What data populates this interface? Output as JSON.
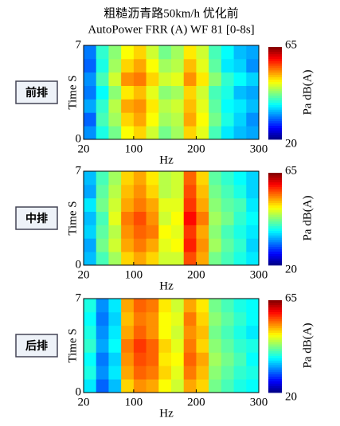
{
  "title": "粗糙沥青路50km/h 优化前",
  "subtitle": "AutoPower FRR (A) WF 81 [0-8s]",
  "chart_data": [
    {
      "type": "heatmap",
      "label": "前排",
      "xlabel": "Hz",
      "ylabel": "Time S",
      "colorbar_label": "Pa dB(A)",
      "colormap": "jet",
      "xlim": [
        20,
        300
      ],
      "xticks": [
        20,
        100,
        200,
        300
      ],
      "ylim": [
        0,
        7
      ],
      "yticks": [
        0,
        7
      ],
      "clim": [
        20,
        65
      ],
      "cticks": [
        20,
        65
      ],
      "xbins": [
        20,
        40,
        60,
        80,
        100,
        120,
        140,
        160,
        180,
        200,
        220,
        240,
        260,
        280,
        300
      ],
      "ybins": [
        0,
        1,
        2,
        3,
        4,
        5,
        6,
        7
      ],
      "values": [
        [
          32,
          38,
          42,
          48,
          50,
          46,
          42,
          44,
          50,
          47,
          40,
          36,
          34,
          33
        ],
        [
          30,
          40,
          44,
          50,
          52,
          48,
          44,
          45,
          52,
          48,
          42,
          38,
          35,
          32
        ],
        [
          33,
          39,
          45,
          52,
          53,
          49,
          45,
          46,
          51,
          47,
          41,
          37,
          36,
          34
        ],
        [
          31,
          37,
          43,
          49,
          51,
          47,
          43,
          44,
          50,
          46,
          40,
          38,
          34,
          33
        ],
        [
          32,
          40,
          46,
          53,
          54,
          50,
          46,
          47,
          53,
          49,
          43,
          39,
          37,
          35
        ],
        [
          30,
          38,
          44,
          50,
          52,
          48,
          44,
          45,
          51,
          47,
          41,
          36,
          35,
          32
        ],
        [
          31,
          39,
          43,
          48,
          50,
          46,
          42,
          44,
          49,
          46,
          40,
          37,
          34,
          33
        ]
      ]
    },
    {
      "type": "heatmap",
      "label": "中排",
      "xlabel": "Hz",
      "ylabel": "Time S",
      "colorbar_label": "Pa dB(A)",
      "colormap": "jet",
      "xlim": [
        20,
        300
      ],
      "xticks": [
        20,
        100,
        200,
        300
      ],
      "ylim": [
        0,
        7
      ],
      "yticks": [
        0,
        7
      ],
      "clim": [
        20,
        65
      ],
      "cticks": [
        20,
        65
      ],
      "xbins": [
        20,
        40,
        60,
        80,
        100,
        120,
        140,
        160,
        180,
        200,
        220,
        240,
        260,
        280,
        300
      ],
      "ybins": [
        0,
        1,
        2,
        3,
        4,
        5,
        6,
        7
      ],
      "values": [
        [
          34,
          40,
          44,
          50,
          52,
          50,
          46,
          46,
          56,
          52,
          42,
          40,
          38,
          36
        ],
        [
          33,
          42,
          46,
          52,
          54,
          52,
          47,
          48,
          58,
          53,
          44,
          41,
          39,
          35
        ],
        [
          35,
          41,
          45,
          53,
          55,
          54,
          48,
          47,
          57,
          52,
          43,
          40,
          38,
          36
        ],
        [
          34,
          40,
          47,
          54,
          56,
          53,
          46,
          48,
          59,
          54,
          44,
          42,
          39,
          37
        ],
        [
          36,
          42,
          46,
          52,
          54,
          52,
          47,
          47,
          57,
          52,
          43,
          41,
          40,
          36
        ],
        [
          33,
          41,
          45,
          51,
          53,
          50,
          45,
          46,
          56,
          51,
          42,
          40,
          38,
          35
        ],
        [
          34,
          40,
          44,
          50,
          52,
          49,
          45,
          46,
          55,
          50,
          41,
          39,
          37,
          35
        ]
      ]
    },
    {
      "type": "heatmap",
      "label": "后排",
      "xlabel": "Hz",
      "ylabel": "Time S",
      "colorbar_label": "Pa dB(A)",
      "colormap": "jet",
      "xlim": [
        20,
        300
      ],
      "xticks": [
        20,
        100,
        200,
        300
      ],
      "ylim": [
        0,
        7
      ],
      "yticks": [
        0,
        7
      ],
      "clim": [
        20,
        65
      ],
      "cticks": [
        20,
        65
      ],
      "xbins": [
        20,
        40,
        60,
        80,
        100,
        120,
        140,
        160,
        180,
        200,
        220,
        240,
        260,
        280,
        300
      ],
      "ybins": [
        0,
        1,
        2,
        3,
        4,
        5,
        6,
        7
      ],
      "values": [
        [
          36,
          30,
          34,
          50,
          53,
          52,
          48,
          46,
          52,
          50,
          42,
          40,
          38,
          37
        ],
        [
          38,
          32,
          36,
          52,
          55,
          54,
          50,
          47,
          54,
          51,
          43,
          41,
          39,
          38
        ],
        [
          37,
          31,
          35,
          53,
          56,
          55,
          49,
          48,
          55,
          52,
          44,
          42,
          40,
          37
        ],
        [
          39,
          33,
          37,
          54,
          57,
          55,
          50,
          47,
          54,
          50,
          43,
          41,
          39,
          38
        ],
        [
          38,
          32,
          36,
          52,
          55,
          53,
          48,
          46,
          53,
          51,
          42,
          40,
          38,
          36
        ],
        [
          37,
          31,
          35,
          51,
          54,
          53,
          48,
          47,
          54,
          50,
          43,
          41,
          39,
          37
        ],
        [
          38,
          32,
          36,
          52,
          55,
          54,
          49,
          46,
          52,
          49,
          42,
          40,
          38,
          37
        ]
      ]
    }
  ]
}
